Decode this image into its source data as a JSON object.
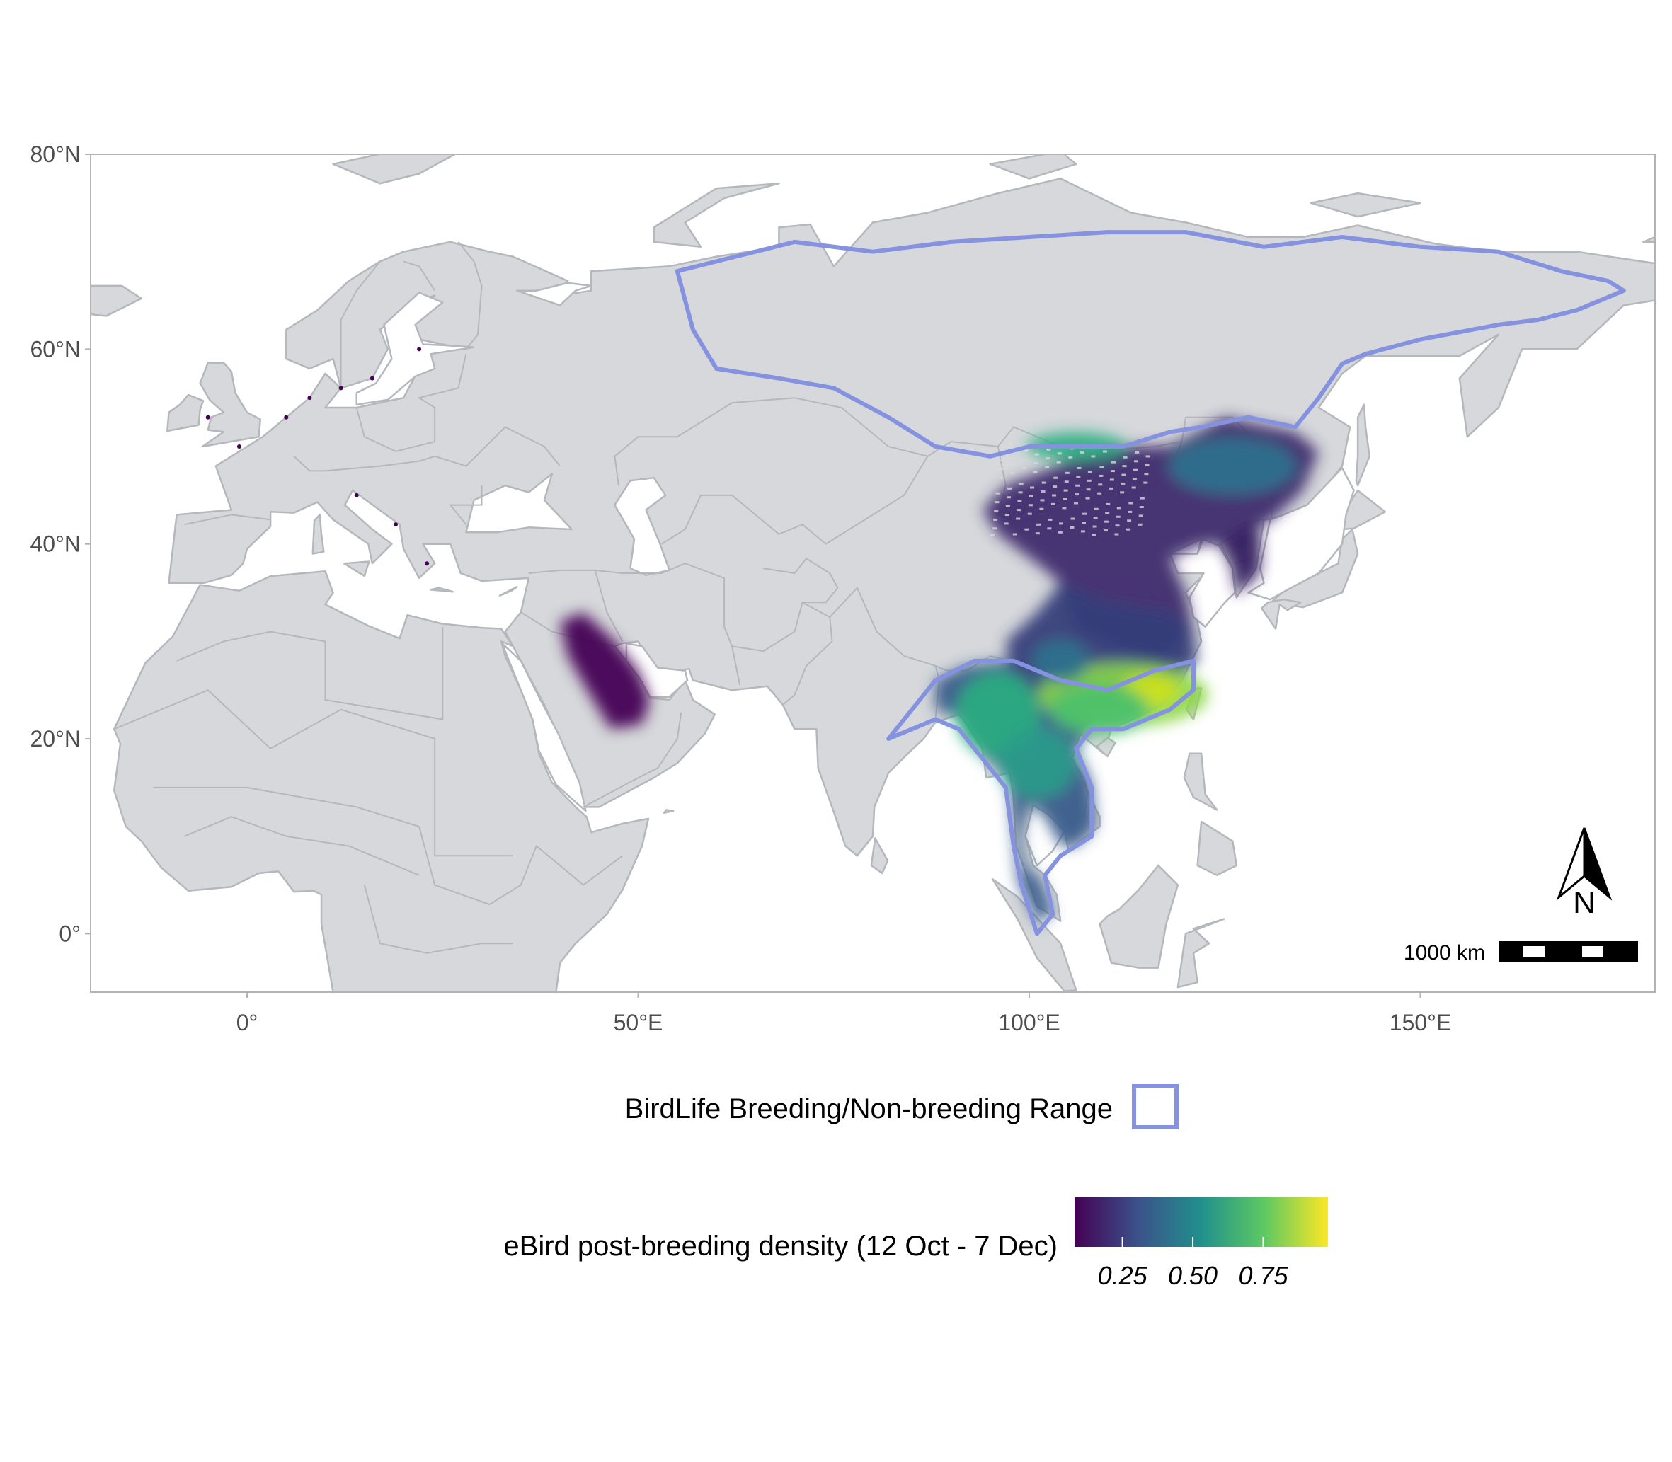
{
  "chart_data": {
    "type": "map",
    "region": "Eurasia, North Africa and Southeast Asia",
    "grid": true,
    "axes": {
      "x": {
        "unit": "degrees longitude",
        "range": [
          -20,
          180
        ],
        "ticks": [
          "0°",
          "50°E",
          "100°E",
          "150°E"
        ],
        "tick_values": [
          0,
          50,
          100,
          150
        ]
      },
      "y": {
        "unit": "degrees latitude",
        "range": [
          -6,
          80
        ],
        "ticks": [
          "0°",
          "20°N",
          "40°N",
          "60°N",
          "80°N"
        ],
        "tick_values": [
          0,
          20,
          40,
          60,
          80
        ]
      }
    },
    "layers": [
      {
        "name": "BirdLife Breeding/Non-breeding Range",
        "kind": "outline",
        "color": "#8592e0"
      },
      {
        "name": "eBird post-breeding density (12 Oct - 7 Dec)",
        "kind": "raster",
        "colormap": "viridis",
        "colorbar_ticks": [
          "0.25",
          "0.50",
          "0.75"
        ],
        "colorbar_tick_values": [
          0.25,
          0.5,
          0.75
        ]
      }
    ],
    "range_outlines": [
      {
        "part": "breeding (Siberia)",
        "coords": [
          [
            55,
            68
          ],
          [
            60,
            69
          ],
          [
            70,
            71
          ],
          [
            80,
            70
          ],
          [
            90,
            71
          ],
          [
            100,
            71.5
          ],
          [
            110,
            72
          ],
          [
            120,
            72
          ],
          [
            130,
            70.5
          ],
          [
            140,
            71.5
          ],
          [
            150,
            70.5
          ],
          [
            160,
            70
          ],
          [
            168,
            68
          ],
          [
            174,
            67
          ],
          [
            176,
            66
          ],
          [
            170,
            64
          ],
          [
            165,
            63
          ],
          [
            160,
            62.5
          ],
          [
            150,
            61
          ],
          [
            143,
            59.5
          ],
          [
            140,
            58.5
          ],
          [
            137,
            55
          ],
          [
            134,
            52
          ],
          [
            128,
            53
          ],
          [
            122,
            52
          ],
          [
            118,
            51.5
          ],
          [
            112,
            50
          ],
          [
            105,
            50
          ],
          [
            100,
            50
          ],
          [
            95,
            49
          ],
          [
            88,
            50
          ],
          [
            82,
            53
          ],
          [
            75,
            56
          ],
          [
            68,
            57
          ],
          [
            60,
            58
          ],
          [
            57,
            62
          ],
          [
            55,
            68
          ]
        ]
      },
      {
        "part": "non-breeding (Indochina and southern China)",
        "coords": [
          [
            82,
            20
          ],
          [
            85,
            23
          ],
          [
            88,
            26
          ],
          [
            93,
            28
          ],
          [
            98,
            28
          ],
          [
            104,
            26
          ],
          [
            110,
            25
          ],
          [
            116,
            27
          ],
          [
            121,
            28
          ],
          [
            121,
            25
          ],
          [
            118,
            23
          ],
          [
            112,
            21
          ],
          [
            108,
            21
          ],
          [
            106,
            19
          ],
          [
            108,
            15
          ],
          [
            108,
            10
          ],
          [
            104,
            8
          ],
          [
            102,
            6
          ],
          [
            103,
            2
          ],
          [
            101,
            0
          ],
          [
            99,
            5
          ],
          [
            98,
            9
          ],
          [
            97,
            15
          ],
          [
            94,
            18
          ],
          [
            91,
            21
          ],
          [
            88,
            22
          ],
          [
            85,
            21
          ],
          [
            82,
            20
          ]
        ]
      }
    ],
    "density_hotspots": [
      {
        "area": "southern China",
        "level": 0.85
      },
      {
        "area": "Myanmar and Thailand",
        "level": 0.55
      },
      {
        "area": "Mongolia and northeast China edge",
        "level": 0.5
      },
      {
        "area": "Manchuria and Korea",
        "level": 0.3
      },
      {
        "area": "Arabian Peninsula",
        "level": 0.05
      }
    ],
    "scale_bar": "1000 km",
    "north_arrow": "N"
  },
  "colors": {
    "land": "#d6d8db",
    "borders": "#b4b8bd",
    "range_outline": "#8592e0",
    "viridis": [
      "#440154",
      "#3b528b",
      "#21908c",
      "#5ec962",
      "#fde725"
    ]
  }
}
